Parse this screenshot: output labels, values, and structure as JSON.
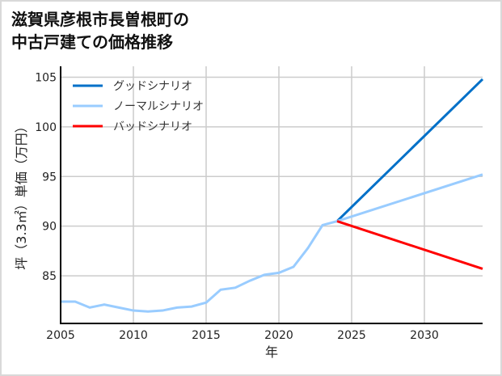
{
  "title_lines": [
    "滋賀県彦根市長曽根町の",
    "中古戸建ての価格推移"
  ],
  "chart_data": {
    "type": "line",
    "title": "滋賀県彦根市長曽根町の中古戸建ての価格推移",
    "xlabel": "年",
    "ylabel": "坪（3.3㎡）単価（万円）",
    "xlim": [
      2005,
      2034
    ],
    "ylim": [
      80.2,
      106.1
    ],
    "xticks": [
      2005,
      2010,
      2015,
      2020,
      2025,
      2030
    ],
    "yticks": [
      85,
      90,
      95,
      100,
      105
    ],
    "grid": true,
    "legend_position": "top-left",
    "series": [
      {
        "name": "グッドシナリオ",
        "color": "#0070c8",
        "x": [
          2024,
          2034
        ],
        "y": [
          90.5,
          104.8
        ]
      },
      {
        "name": "ノーマルシナリオ",
        "color": "#99ccff",
        "x": [
          2005,
          2006,
          2007,
          2008,
          2009,
          2010,
          2011,
          2012,
          2013,
          2014,
          2015,
          2016,
          2017,
          2018,
          2019,
          2020,
          2021,
          2022,
          2023,
          2024,
          2034
        ],
        "y": [
          82.4,
          82.4,
          81.8,
          82.1,
          81.8,
          81.5,
          81.4,
          81.5,
          81.8,
          81.9,
          82.3,
          83.6,
          83.8,
          84.5,
          85.1,
          85.3,
          85.9,
          87.8,
          90.1,
          90.5,
          95.2
        ]
      },
      {
        "name": "バッドシナリオ",
        "color": "#ff0000",
        "x": [
          2024,
          2034
        ],
        "y": [
          90.5,
          85.7
        ]
      }
    ]
  }
}
